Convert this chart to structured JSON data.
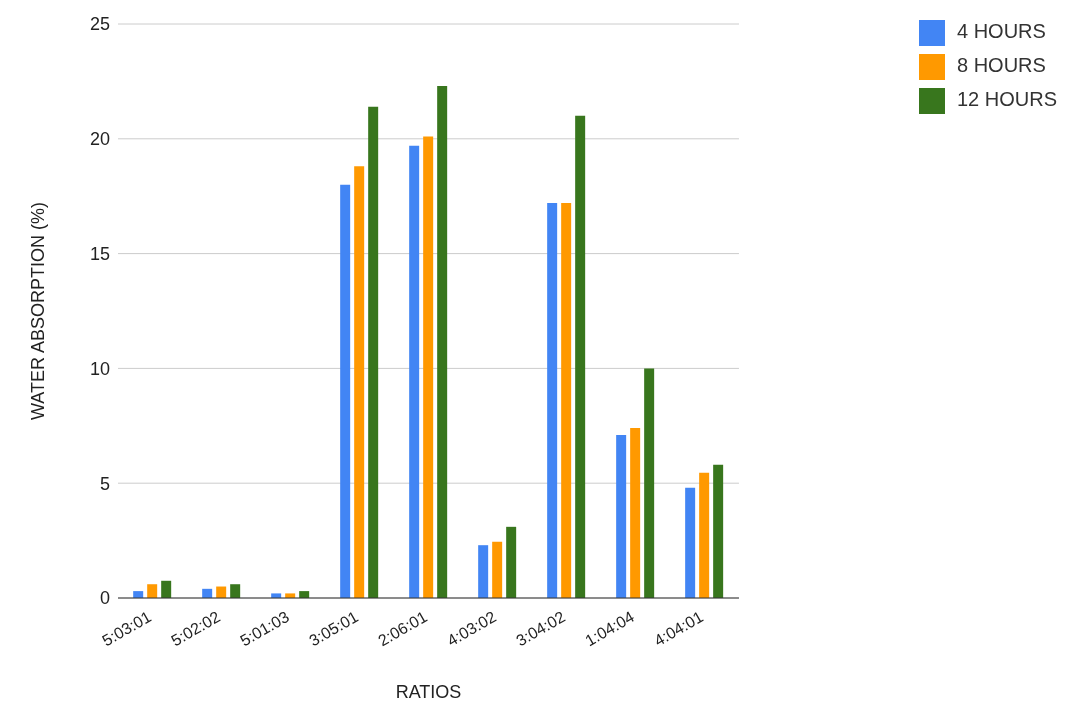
{
  "chart_data": {
    "type": "bar",
    "xlabel": "RATIOS",
    "ylabel": "WATER ABSORPTION (%)",
    "categories": [
      "5:03:01",
      "5:02:02",
      "5:01:03",
      "3:05:01",
      "2:06:01",
      "4:03:02",
      "3:04:02",
      "1:04:04",
      "4:04:01"
    ],
    "series": [
      {
        "name": "4 HOURS",
        "color": "#4285f4",
        "values": [
          0.3,
          0.4,
          0.2,
          18.0,
          19.7,
          2.3,
          17.2,
          7.1,
          4.8
        ]
      },
      {
        "name": "8 HOURS",
        "color": "#ff9900",
        "values": [
          0.6,
          0.5,
          0.2,
          18.8,
          20.1,
          2.45,
          17.2,
          7.4,
          5.45
        ]
      },
      {
        "name": "12 HOURS",
        "color": "#38761d",
        "values": [
          0.75,
          0.6,
          0.3,
          21.4,
          22.3,
          3.1,
          21.0,
          10.0,
          5.8
        ]
      }
    ],
    "ylim": [
      0,
      25
    ],
    "yticks": [
      0,
      5,
      10,
      15,
      20,
      25
    ],
    "grid": "y",
    "legend": "top right"
  }
}
